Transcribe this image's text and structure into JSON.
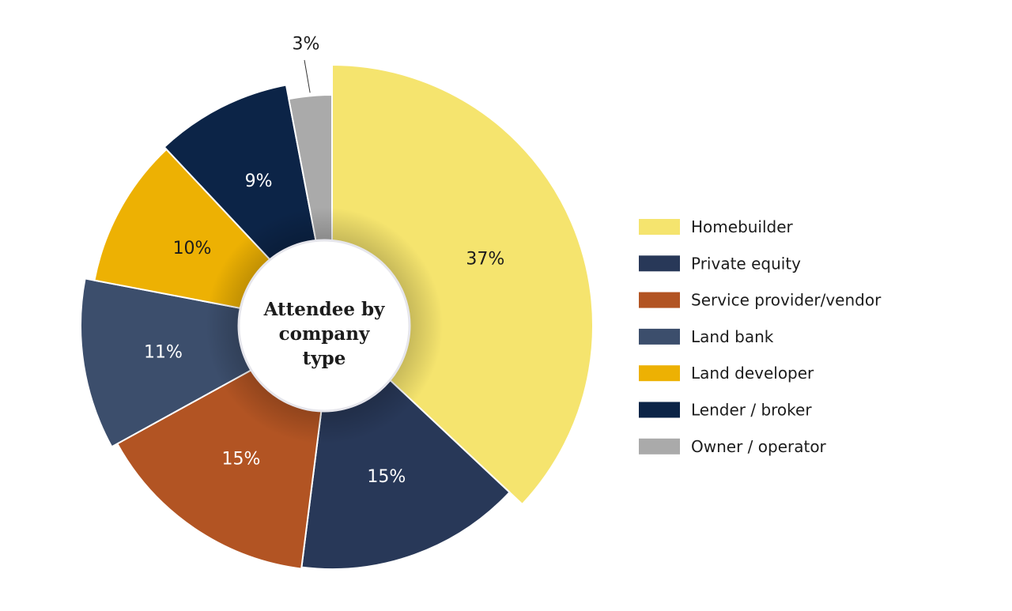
{
  "chart_data": {
    "type": "pie",
    "title": "Attendee by company type",
    "title_lines": [
      "Attendee by",
      "company",
      "type"
    ],
    "legend_position": "right",
    "slices": [
      {
        "name": "Homebuilder",
        "value": 37,
        "label": "37%",
        "color": "#f5e46e",
        "label_color": "#1c1c1c"
      },
      {
        "name": "Private equity",
        "value": 15,
        "label": "15%",
        "color": "#283858",
        "label_color": "#ffffff"
      },
      {
        "name": "Service provider/vendor",
        "value": 15,
        "label": "15%",
        "color": "#b25423",
        "label_color": "#ffffff"
      },
      {
        "name": "Land bank",
        "value": 11,
        "label": "11%",
        "color": "#3c4e6c",
        "label_color": "#ffffff"
      },
      {
        "name": "Land developer",
        "value": 10,
        "label": "10%",
        "color": "#edb103",
        "label_color": "#1c1c1c"
      },
      {
        "name": "Lender / broker",
        "value": 9,
        "label": "9%",
        "color": "#0c2447",
        "label_color": "#ffffff"
      },
      {
        "name": "Owner / operator",
        "value": 3,
        "label": "3%",
        "color": "#aaaaaa",
        "label_color": "#1c1c1c"
      }
    ]
  }
}
